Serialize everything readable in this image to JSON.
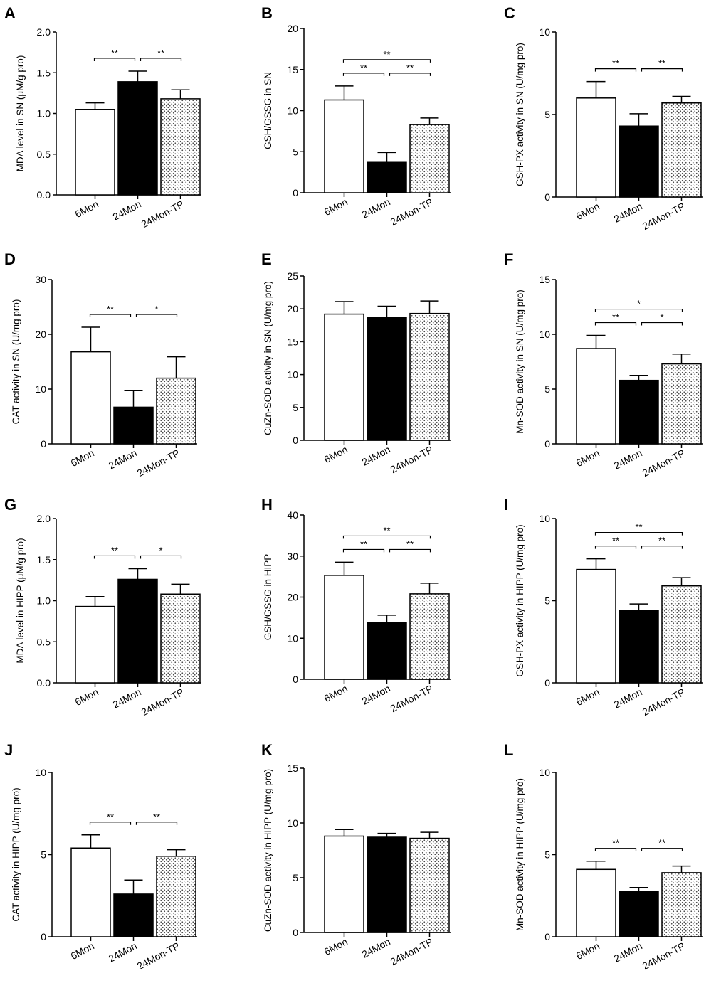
{
  "figure": {
    "categories": [
      "6Mon",
      "24Mon",
      "24Mon-TP"
    ]
  },
  "chart_data": [
    {
      "panel": "A",
      "type": "bar",
      "ylabel": "MDA level in SN (μM/g pro)",
      "ylim": [
        0,
        2.0
      ],
      "yticks": [
        "0.0",
        "0.5",
        "1.0",
        "1.5",
        "2.0"
      ],
      "tick_values": [
        0,
        0.5,
        1.0,
        1.5,
        2.0
      ],
      "categories": [
        "6Mon",
        "24Mon",
        "24Mon-TP"
      ],
      "values": [
        1.05,
        1.39,
        1.18
      ],
      "errors": [
        0.08,
        0.13,
        0.11
      ],
      "significance": [
        {
          "from": 0,
          "to": 1,
          "label": "**",
          "level": 0
        },
        {
          "from": 1,
          "to": 2,
          "label": "**",
          "level": 0
        }
      ]
    },
    {
      "panel": "B",
      "type": "bar",
      "ylabel": "GSH/GSSG in SN",
      "ylim": [
        0,
        20
      ],
      "yticks": [
        "0",
        "5",
        "10",
        "15",
        "20"
      ],
      "tick_values": [
        0,
        5,
        10,
        15,
        20
      ],
      "categories": [
        "6Mon",
        "24Mon",
        "24Mon-TP"
      ],
      "values": [
        11.3,
        3.7,
        8.3
      ],
      "errors": [
        1.7,
        1.2,
        0.8
      ],
      "significance": [
        {
          "from": 0,
          "to": 1,
          "label": "**",
          "level": 0
        },
        {
          "from": 1,
          "to": 2,
          "label": "**",
          "level": 0
        },
        {
          "from": 0,
          "to": 2,
          "label": "**",
          "level": 1
        }
      ]
    },
    {
      "panel": "C",
      "type": "bar",
      "ylabel": "GSH-PX activity in SN (U/mg pro)",
      "ylim": [
        0,
        10
      ],
      "yticks": [
        "0",
        "5",
        "10"
      ],
      "tick_values": [
        0,
        5,
        10
      ],
      "categories": [
        "6Mon",
        "24Mon",
        "24Mon-TP"
      ],
      "values": [
        6.0,
        4.3,
        5.7
      ],
      "errors": [
        1.0,
        0.75,
        0.4
      ],
      "significance": [
        {
          "from": 0,
          "to": 1,
          "label": "**",
          "level": 0
        },
        {
          "from": 1,
          "to": 2,
          "label": "**",
          "level": 0
        }
      ]
    },
    {
      "panel": "D",
      "type": "bar",
      "ylabel": "CAT activity in SN (U/mg pro)",
      "ylim": [
        0,
        30
      ],
      "yticks": [
        "0",
        "10",
        "20",
        "30"
      ],
      "tick_values": [
        0,
        10,
        20,
        30
      ],
      "categories": [
        "6Mon",
        "24Mon",
        "24Mon-TP"
      ],
      "values": [
        16.8,
        6.7,
        12.0
      ],
      "errors": [
        4.5,
        3.0,
        3.9
      ],
      "significance": [
        {
          "from": 0,
          "to": 1,
          "label": "**",
          "level": 0
        },
        {
          "from": 1,
          "to": 2,
          "label": "*",
          "level": 0
        }
      ]
    },
    {
      "panel": "E",
      "type": "bar",
      "ylabel": "CuZn-SOD activity in SN (U/mg pro)",
      "ylim": [
        0,
        25
      ],
      "yticks": [
        "0",
        "5",
        "10",
        "15",
        "20",
        "25"
      ],
      "tick_values": [
        0,
        5,
        10,
        15,
        20,
        25
      ],
      "categories": [
        "6Mon",
        "24Mon",
        "24Mon-TP"
      ],
      "values": [
        19.2,
        18.7,
        19.3
      ],
      "errors": [
        1.9,
        1.7,
        1.9
      ],
      "significance": []
    },
    {
      "panel": "F",
      "type": "bar",
      "ylabel": "Mn-SOD activity in SN (U/mg pro)",
      "ylim": [
        0,
        15
      ],
      "yticks": [
        "0",
        "5",
        "10",
        "15"
      ],
      "tick_values": [
        0,
        5,
        10,
        15
      ],
      "categories": [
        "6Mon",
        "24Mon",
        "24Mon-TP"
      ],
      "values": [
        8.7,
        5.8,
        7.3
      ],
      "errors": [
        1.2,
        0.45,
        0.9
      ],
      "significance": [
        {
          "from": 0,
          "to": 1,
          "label": "**",
          "level": 0
        },
        {
          "from": 1,
          "to": 2,
          "label": "*",
          "level": 0
        },
        {
          "from": 0,
          "to": 2,
          "label": "*",
          "level": 1
        }
      ]
    },
    {
      "panel": "G",
      "type": "bar",
      "ylabel": "MDA level in HIPP (μM/g pro)",
      "ylim": [
        0,
        2.0
      ],
      "yticks": [
        "0.0",
        "0.5",
        "1.0",
        "1.5",
        "2.0"
      ],
      "tick_values": [
        0,
        0.5,
        1.0,
        1.5,
        2.0
      ],
      "categories": [
        "6Mon",
        "24Mon",
        "24Mon-TP"
      ],
      "values": [
        0.93,
        1.26,
        1.08
      ],
      "errors": [
        0.12,
        0.13,
        0.12
      ],
      "significance": [
        {
          "from": 0,
          "to": 1,
          "label": "**",
          "level": 0
        },
        {
          "from": 1,
          "to": 2,
          "label": "*",
          "level": 0
        }
      ]
    },
    {
      "panel": "H",
      "type": "bar",
      "ylabel": "GSH/GSSG in HIPP",
      "ylim": [
        0,
        40
      ],
      "yticks": [
        "0",
        "10",
        "20",
        "30",
        "40"
      ],
      "tick_values": [
        0,
        10,
        20,
        30,
        40
      ],
      "categories": [
        "6Mon",
        "24Mon",
        "24Mon-TP"
      ],
      "values": [
        25.3,
        13.8,
        20.8
      ],
      "errors": [
        3.2,
        1.8,
        2.6
      ],
      "significance": [
        {
          "from": 0,
          "to": 1,
          "label": "**",
          "level": 0
        },
        {
          "from": 1,
          "to": 2,
          "label": "**",
          "level": 0
        },
        {
          "from": 0,
          "to": 2,
          "label": "**",
          "level": 1
        }
      ]
    },
    {
      "panel": "I",
      "type": "bar",
      "ylabel": "GSH-PX activity in HIPP (U/mg pro)",
      "ylim": [
        0,
        10
      ],
      "yticks": [
        "0",
        "5",
        "10"
      ],
      "tick_values": [
        0,
        5,
        10
      ],
      "categories": [
        "6Mon",
        "24Mon",
        "24Mon-TP"
      ],
      "values": [
        6.9,
        4.4,
        5.9
      ],
      "errors": [
        0.65,
        0.4,
        0.5
      ],
      "significance": [
        {
          "from": 0,
          "to": 1,
          "label": "**",
          "level": 0
        },
        {
          "from": 1,
          "to": 2,
          "label": "**",
          "level": 0
        },
        {
          "from": 0,
          "to": 2,
          "label": "**",
          "level": 1
        }
      ]
    },
    {
      "panel": "J",
      "type": "bar",
      "ylabel": "CAT activity in HIPP (U/mg pro)",
      "ylim": [
        0,
        10
      ],
      "yticks": [
        "0",
        "5",
        "10"
      ],
      "tick_values": [
        0,
        5,
        10
      ],
      "categories": [
        "6Mon",
        "24Mon",
        "24Mon-TP"
      ],
      "values": [
        5.4,
        2.6,
        4.9
      ],
      "errors": [
        0.8,
        0.85,
        0.4
      ],
      "significance": [
        {
          "from": 0,
          "to": 1,
          "label": "**",
          "level": 0
        },
        {
          "from": 1,
          "to": 2,
          "label": "**",
          "level": 0
        }
      ]
    },
    {
      "panel": "K",
      "type": "bar",
      "ylabel": "CuZn-SOD activity in HIPP (U/mg pro)",
      "ylim": [
        0,
        15
      ],
      "yticks": [
        "0",
        "5",
        "10",
        "15"
      ],
      "tick_values": [
        0,
        5,
        10,
        15
      ],
      "categories": [
        "6Mon",
        "24Mon",
        "24Mon-TP"
      ],
      "values": [
        8.8,
        8.7,
        8.6
      ],
      "errors": [
        0.6,
        0.35,
        0.55
      ],
      "significance": []
    },
    {
      "panel": "L",
      "type": "bar",
      "ylabel": "Mn-SOD activity in HIPP (U/mg pro)",
      "ylim": [
        0,
        10
      ],
      "yticks": [
        "0",
        "5",
        "10"
      ],
      "tick_values": [
        0,
        5,
        10
      ],
      "categories": [
        "6Mon",
        "24Mon",
        "24Mon-TP"
      ],
      "values": [
        4.1,
        2.75,
        3.9
      ],
      "errors": [
        0.5,
        0.25,
        0.4
      ],
      "significance": [
        {
          "from": 0,
          "to": 1,
          "label": "**",
          "level": 0
        },
        {
          "from": 1,
          "to": 2,
          "label": "**",
          "level": 0
        }
      ]
    }
  ]
}
